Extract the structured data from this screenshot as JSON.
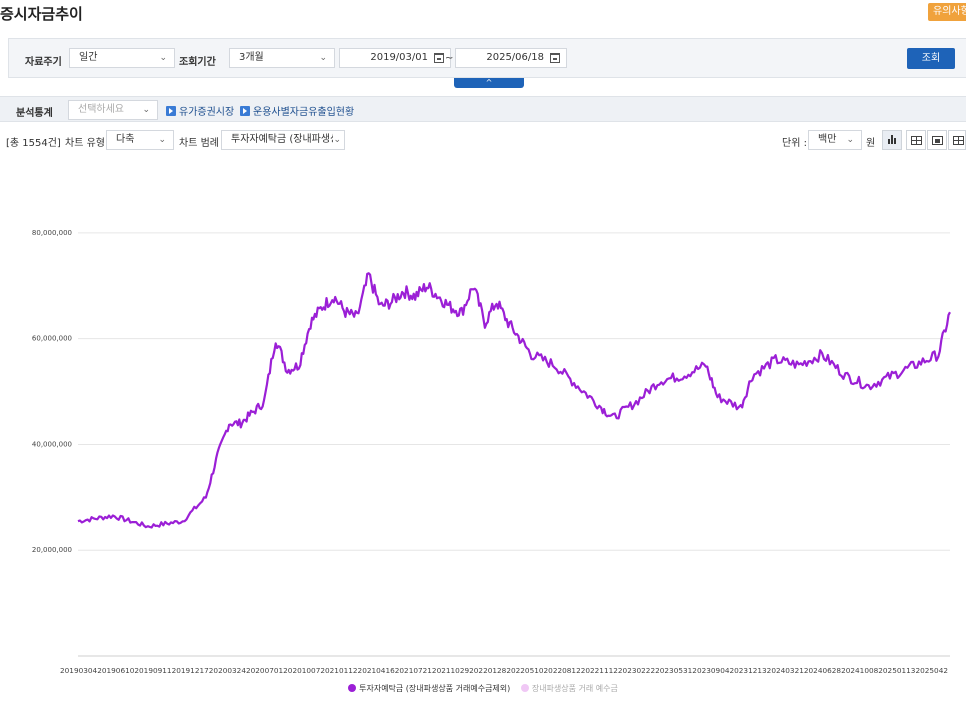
{
  "header": {
    "title": "증시자금추이",
    "notice_label": "유의사항"
  },
  "search": {
    "period_label": "자료주기",
    "period_value": "일간",
    "range_label": "조회기간",
    "range_value": "3개월",
    "start_date": "2019/03/01",
    "date_separator": "~",
    "end_date": "2025/06/18",
    "search_button": "조회",
    "collapse_glyph": "^"
  },
  "analysis": {
    "label": "분석통계",
    "select_placeholder": "선택하세요",
    "link1": "유가증권시장",
    "link2": "운용사별자금유출입현황"
  },
  "toolbar": {
    "total_count": "[총 1554건]",
    "chart_type_label": "차트 유형",
    "chart_type_value": "다축",
    "legend_label": "차트 범례",
    "legend_value": "투자자예탁금 (장내파생상",
    "unit_label": "단위 :",
    "unit_value": "백만",
    "unit_suffix": "원"
  },
  "colors": {
    "accent": "#1e63b8",
    "series1": "#9b1fd6",
    "series2": "#f0c8f5",
    "notice": "#f0a23c"
  },
  "icons": [
    "chevron-down-icon",
    "calendar-icon",
    "play-link-icon",
    "bar-chart-icon",
    "table-icon",
    "area-chart-icon",
    "grid-icon"
  ],
  "chart_data": {
    "type": "line",
    "y_ticks": [
      "20,000,000",
      "40,000,000",
      "60,000,000",
      "80,000,000"
    ],
    "ylim": [
      0,
      90000000
    ],
    "x_tick_text": "20190304201906102019091120191217202003242020070120201007202101122021041620210721202110292022012820220510202208122022111220230222202305312023090420231213202403212024062820241008202501132025042",
    "series": [
      {
        "name": "투자자예탁금 (장내파생상품 거래예수금제외)",
        "x": [
          "2019-03",
          "2019-06",
          "2019-09",
          "2019-12",
          "2020-02",
          "2020-03",
          "2020-04",
          "2020-05",
          "2020-06",
          "2020-07",
          "2020-08",
          "2020-09",
          "2020-10",
          "2020-11",
          "2020-12",
          "2021-01",
          "2021-02",
          "2021-03",
          "2021-04",
          "2021-05",
          "2021-06",
          "2021-07",
          "2021-08",
          "2021-09",
          "2021-10",
          "2021-11",
          "2021-12",
          "2022-01",
          "2022-02",
          "2022-03",
          "2022-04",
          "2022-05",
          "2022-06",
          "2022-08",
          "2022-10",
          "2022-12",
          "2023-01",
          "2023-03",
          "2023-05",
          "2023-07",
          "2023-09",
          "2023-10",
          "2023-12",
          "2024-01",
          "2024-03",
          "2024-05",
          "2024-07",
          "2024-09",
          "2024-11",
          "2025-01",
          "2025-03",
          "2025-05",
          "2025-06"
        ],
        "values": [
          25500000,
          26500000,
          24500000,
          25500000,
          30000000,
          38000000,
          44000000,
          44000000,
          46000000,
          48000000,
          60000000,
          54000000,
          55000000,
          63000000,
          66000000,
          68000000,
          65000000,
          64000000,
          72000000,
          66000000,
          67000000,
          69000000,
          68000000,
          70000000,
          68000000,
          66000000,
          65000000,
          70000000,
          63000000,
          67000000,
          63000000,
          60000000,
          57000000,
          55000000,
          51000000,
          47000000,
          45000000,
          48000000,
          52000000,
          53000000,
          55000000,
          49000000,
          47000000,
          53000000,
          56000000,
          55000000,
          57000000,
          53000000,
          51000000,
          53000000,
          55000000,
          57000000,
          65000000
        ]
      },
      {
        "name": "장내파생상품 거래 예수금"
      }
    ]
  }
}
